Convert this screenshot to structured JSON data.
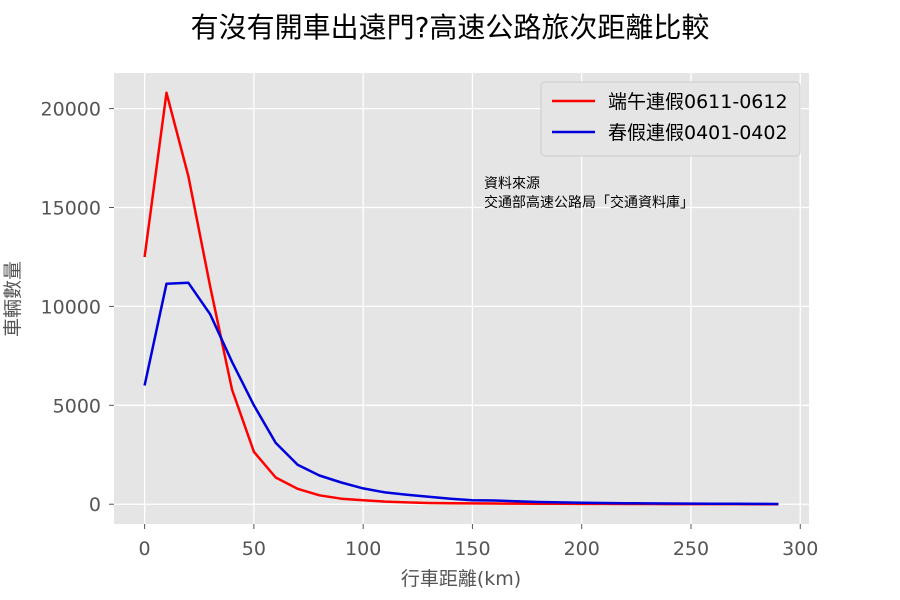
{
  "chart_data": {
    "type": "line",
    "title": "有沒有開車出遠門?高速公路旅次距離比較",
    "xlabel": "行車距離(km)",
    "ylabel": "車輛數量",
    "xlim": [
      -14,
      304
    ],
    "ylim": [
      -1000,
      21800
    ],
    "xticks": [
      0,
      50,
      100,
      150,
      200,
      250,
      300
    ],
    "yticks": [
      0,
      5000,
      10000,
      15000,
      20000
    ],
    "grid": true,
    "legend_position": "top-right",
    "annotation": {
      "line1": "資料來源",
      "line2": "交通部高速公路局「交通資料庫」"
    },
    "x": [
      0,
      10,
      20,
      30,
      40,
      50,
      60,
      70,
      80,
      90,
      100,
      110,
      120,
      130,
      140,
      150,
      160,
      170,
      180,
      190,
      200,
      210,
      220,
      230,
      240,
      250,
      260,
      270,
      280,
      290
    ],
    "series": [
      {
        "name": "端午連假0611-0612",
        "color": "#ff0000",
        "values": [
          12500,
          20800,
          16600,
          11000,
          5800,
          2650,
          1350,
          780,
          450,
          280,
          200,
          130,
          90,
          60,
          50,
          40,
          35,
          30,
          25,
          20,
          18,
          15,
          12,
          10,
          8,
          6,
          5,
          4,
          3,
          2
        ]
      },
      {
        "name": "春假連假0401-0402",
        "color": "#0000dd",
        "values": [
          6000,
          11150,
          11200,
          9600,
          7200,
          5000,
          3100,
          2000,
          1450,
          1100,
          800,
          600,
          480,
          380,
          280,
          200,
          190,
          150,
          110,
          90,
          70,
          60,
          50,
          40,
          35,
          30,
          25,
          20,
          15,
          10
        ]
      }
    ]
  }
}
